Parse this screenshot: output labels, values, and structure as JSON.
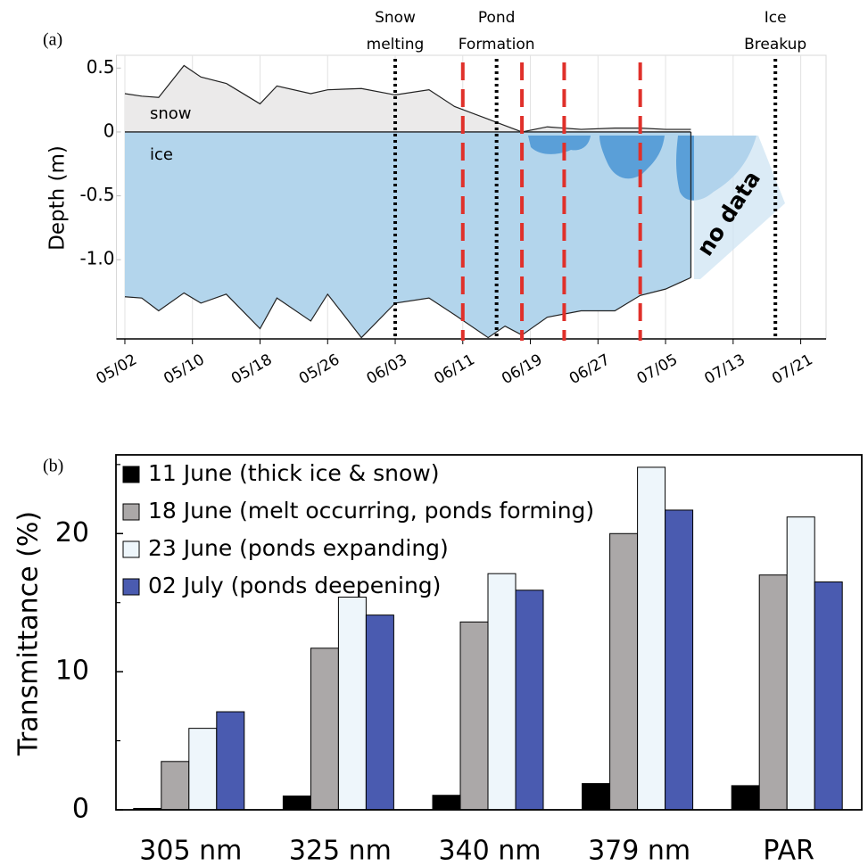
{
  "chart_data": [
    {
      "type": "area",
      "panel_label": "(a)",
      "ylabel": "Depth (m)",
      "xlim": [
        "05/01",
        "07/24"
      ],
      "xticks": [
        "05/02",
        "05/10",
        "05/18",
        "05/26",
        "06/03",
        "06/11",
        "06/19",
        "06/27",
        "07/05",
        "07/13",
        "07/21"
      ],
      "ylim": [
        -1.62,
        0.6
      ],
      "yticks": [
        0.5,
        0,
        -0.5,
        {
          "value": -1,
          "label": "-1.0"
        }
      ],
      "grid": true,
      "x": [
        "05/02",
        "05/04",
        "05/06",
        "05/09",
        "05/11",
        "05/14",
        "05/18",
        "05/20",
        "05/24",
        "05/26",
        "05/30",
        "06/03",
        "06/07",
        "06/10",
        "06/14",
        "06/16",
        "06/18",
        "06/21",
        "06/25",
        "06/29",
        "07/02",
        "07/05",
        "07/08"
      ],
      "series": [
        {
          "name": "snow",
          "color": "#ebeaea",
          "values": [
            0.3,
            0.28,
            0.27,
            0.52,
            0.43,
            0.38,
            0.22,
            0.36,
            0.3,
            0.33,
            0.34,
            0.29,
            0.33,
            0.2,
            0.1,
            0.05,
            0.0,
            0.04,
            0.02,
            0.03,
            0.03,
            0.02,
            0.02
          ]
        },
        {
          "name": "ice",
          "color": "#b3d5ec",
          "values": [
            -1.29,
            -1.3,
            -1.4,
            -1.26,
            -1.34,
            -1.27,
            -1.54,
            -1.3,
            -1.48,
            -1.27,
            -1.61,
            -1.34,
            -1.3,
            -1.43,
            -1.61,
            -1.52,
            -1.59,
            -1.45,
            -1.4,
            -1.4,
            -1.28,
            -1.23,
            -1.14
          ]
        }
      ],
      "events": [
        {
          "label": "Snow melting",
          "x": "06/03"
        },
        {
          "label": "Pond Formation",
          "x": "06/15"
        },
        {
          "label": "Ice Breakup",
          "x": "07/18"
        }
      ],
      "event_color": "#000000",
      "sampling_dates": [
        "06/11",
        "06/18",
        "06/23",
        "07/02"
      ],
      "sampling_color": "#e0302a",
      "annotation": "no data"
    },
    {
      "type": "bar",
      "panel_label": "(b)",
      "ylabel": "Transmittance (%)",
      "categories": [
        "305 nm",
        "325 nm",
        "340 nm",
        "379 nm",
        "PAR"
      ],
      "ylim": [
        0,
        25.7
      ],
      "yticks": [
        0,
        10,
        20
      ],
      "minor_yticks": [
        5,
        15,
        25
      ],
      "legend": "upper left",
      "series": [
        {
          "name": "11 June (thick ice & snow)",
          "color": "#000000",
          "values": [
            0.1,
            1.0,
            1.05,
            1.9,
            1.75
          ]
        },
        {
          "name": "18 June (melt occurring, ponds forming)",
          "color": "#aba8a8",
          "values": [
            3.5,
            11.7,
            13.6,
            20.0,
            17.0
          ]
        },
        {
          "name": "23 June (ponds expanding)",
          "color": "#eef6fb",
          "values": [
            5.9,
            15.4,
            17.1,
            24.8,
            21.2
          ]
        },
        {
          "name": "02 July (ponds deepening)",
          "color": "#4a5bb0",
          "values": [
            7.1,
            14.1,
            15.9,
            21.7,
            16.5
          ]
        }
      ]
    }
  ]
}
